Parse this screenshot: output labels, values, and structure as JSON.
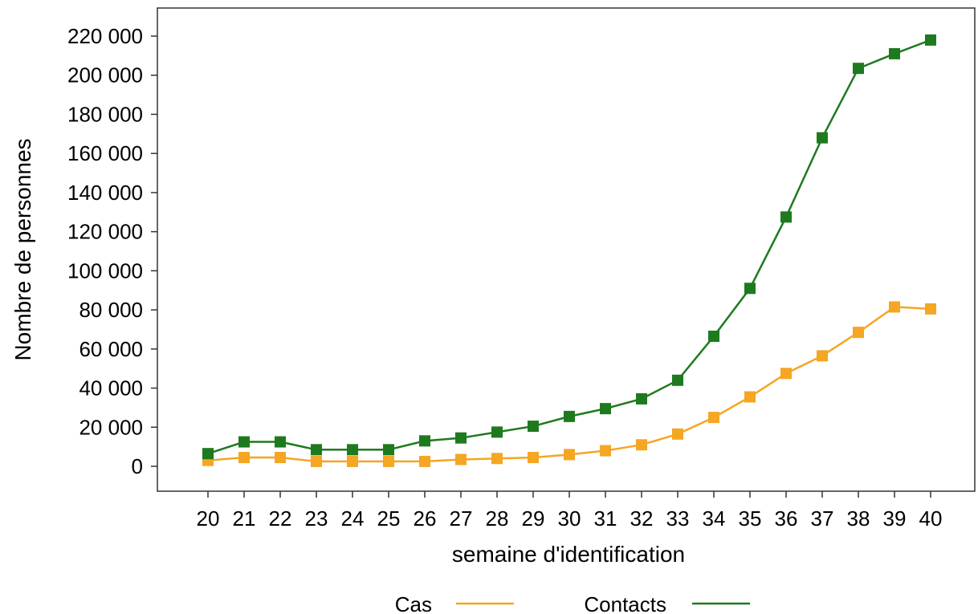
{
  "chart_data": {
    "type": "line",
    "title": "",
    "xlabel": "semaine d'identification",
    "ylabel": "Nombre de personnes",
    "categories": [
      "20",
      "21",
      "22",
      "23",
      "24",
      "25",
      "26",
      "27",
      "28",
      "29",
      "30",
      "31",
      "32",
      "33",
      "34",
      "35",
      "36",
      "37",
      "38",
      "39",
      "40"
    ],
    "ylim": [
      0,
      220000
    ],
    "y_ticks": [
      0,
      20000,
      40000,
      60000,
      80000,
      100000,
      120000,
      140000,
      160000,
      180000,
      200000,
      220000
    ],
    "y_tick_labels": [
      "0",
      "20 000",
      "40 000",
      "60 000",
      "80 000",
      "100 000",
      "120 000",
      "140 000",
      "160 000",
      "180 000",
      "200 000",
      "220 000"
    ],
    "grid": false,
    "legend_position": "bottom",
    "series": [
      {
        "name": "Cas",
        "color": "#f5a623",
        "values": [
          3000,
          4500,
          4500,
          2500,
          2500,
          2500,
          2500,
          3500,
          4000,
          4500,
          6000,
          8000,
          11000,
          16500,
          25000,
          35500,
          47500,
          56500,
          68500,
          81500,
          80500
        ]
      },
      {
        "name": "Contacts",
        "color": "#1e7a1e",
        "values": [
          6500,
          12500,
          12500,
          8500,
          8500,
          8500,
          13000,
          14500,
          17500,
          20500,
          25500,
          29500,
          34500,
          44000,
          66500,
          91000,
          127500,
          168000,
          203500,
          211000,
          218000
        ]
      }
    ]
  }
}
